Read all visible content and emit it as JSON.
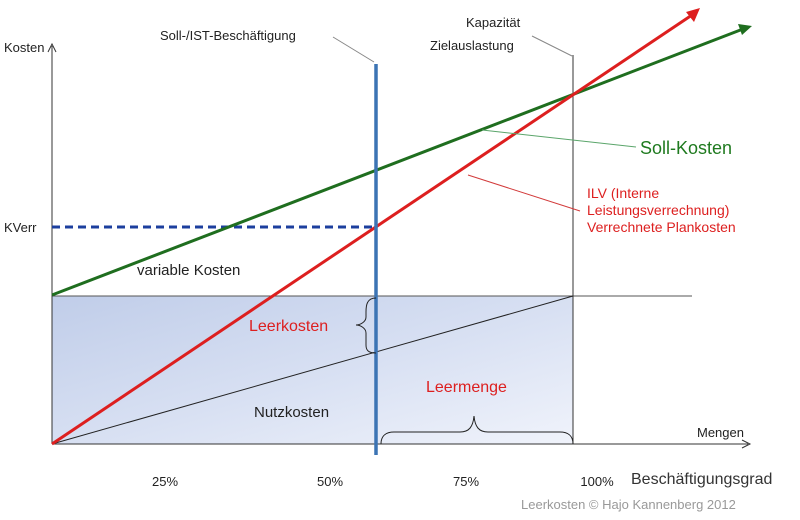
{
  "axes": {
    "y_label": "Kosten",
    "x_label": "Mengen",
    "x_title": "Beschäftigungsgrad",
    "kverr": "KVerr",
    "x_ticks": [
      "25%",
      "50%",
      "75%",
      "100%"
    ]
  },
  "annotations": {
    "ist": "Soll-/IST-Beschäftigung",
    "kap1": "Kapazität",
    "kap2": "Zielauslastung",
    "soll": "Soll-Kosten",
    "ilv1": "ILV (Interne",
    "ilv2": "Leistungsverrechnung)",
    "ilv3": "Verrechnete Plankosten",
    "variable": "variable Kosten",
    "leerkosten": "Leerkosten",
    "nutzkosten": "Nutzkosten",
    "leermenge": "Leermenge"
  },
  "footer": "Leerkosten © Hajo Kannenberg 2012",
  "colors": {
    "soll": "#1f6e1f",
    "ilv": "#dd1f1f",
    "ist_line": "#3c74b4",
    "kverr_dash": "#1c3f9e",
    "fill_top": "#c3d0ea",
    "fill_bottom": "#eef2fb"
  }
}
